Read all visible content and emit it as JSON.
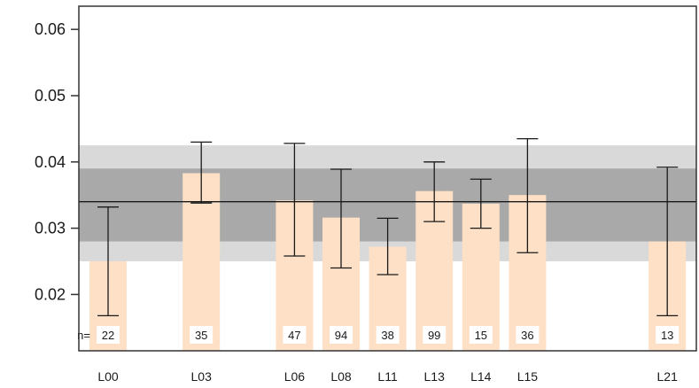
{
  "chart_data": {
    "type": "bar",
    "title": "",
    "xlabel": "",
    "ylabel": "",
    "ylim": [
      0.0115,
      0.0635
    ],
    "yticks": [
      0.02,
      0.03,
      0.04,
      0.05,
      0.06
    ],
    "ytick_labels": [
      "0.02",
      "0.03",
      "0.04",
      "0.05",
      "0.06"
    ],
    "categories": [
      "L00",
      "L03",
      "L06",
      "L08",
      "L11",
      "L13",
      "L14",
      "L15",
      "L21"
    ],
    "category_positions": [
      0,
      2,
      4,
      5,
      6,
      7,
      8,
      9,
      12
    ],
    "values": [
      0.025,
      0.0383,
      0.0342,
      0.0316,
      0.0272,
      0.0356,
      0.0337,
      0.035,
      0.028
    ],
    "error_low": [
      0.0168,
      0.0338,
      0.0258,
      0.024,
      0.023,
      0.031,
      0.03,
      0.0263,
      0.0168
    ],
    "error_high": [
      0.0332,
      0.043,
      0.0428,
      0.0389,
      0.0315,
      0.04,
      0.0374,
      0.0435,
      0.0392
    ],
    "n_prefix": "n=",
    "n": [
      "22",
      "35",
      "47",
      "94",
      "38",
      "99",
      "15",
      "36",
      "13"
    ],
    "reference_line": 0.034,
    "band_inner": [
      0.028,
      0.039
    ],
    "band_outer": [
      0.025,
      0.0425
    ],
    "colors": {
      "bar": "#fde0c5",
      "band_outer": "#d9d9d9",
      "band_inner": "#a9a9a9",
      "line": "#1a1a1a"
    }
  }
}
